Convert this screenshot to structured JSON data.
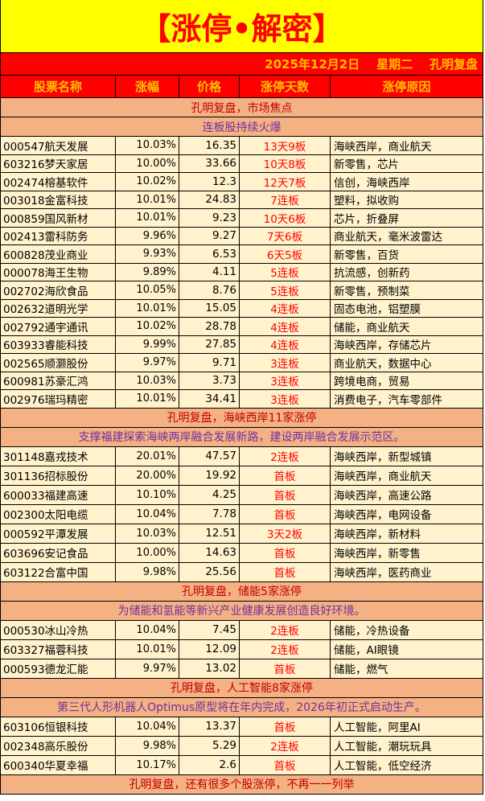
{
  "title": "【涨停•解密】",
  "date_line": "2025年12月2日    星期二    孔明复盘",
  "headers": [
    "股票名称",
    "涨幅",
    "价格",
    "涨停天数",
    "涨停原因"
  ],
  "colors": {
    "title_bg": "#ffff00",
    "title_text": "#ff0000",
    "header_bg": "#ff0000",
    "header_text": "#ffc000",
    "section_bg": "#f4b183",
    "row_bg": "#fff2cc",
    "days_text": "#ff0000"
  },
  "sections": [
    {
      "heading": "孔明复盘，市场焦点",
      "subheading": "连板股持续火爆",
      "rows": [
        [
          "000547航天发展",
          "10.03%",
          "16.35",
          "13天9板",
          "海峡西岸，商业航天"
        ],
        [
          "603216梦天家居",
          "10.00%",
          "33.66",
          "10天8板",
          "新零售，芯片"
        ],
        [
          "002474榕基软件",
          "10.02%",
          "12.3",
          "12天7板",
          "信创，海峡西岸"
        ],
        [
          "003018金富科技",
          "10.01%",
          "24.83",
          "7连板",
          "塑料，拟收购"
        ],
        [
          "000859国风新材",
          "10.01%",
          "9.23",
          "10天6板",
          "芯片，折叠屏"
        ],
        [
          "002413雷科防务",
          "9.96%",
          "9.27",
          "7天6板",
          "商业航天，毫米波雷达"
        ],
        [
          "600828茂业商业",
          "9.93%",
          "6.53",
          "6天5板",
          "新零售，百货"
        ],
        [
          "000078海王生物",
          "9.89%",
          "4.11",
          "5连板",
          "抗流感，创新药"
        ],
        [
          "002702海欣食品",
          "10.05%",
          "8.76",
          "5连板",
          "新零售，预制菜"
        ],
        [
          "002632道明光学",
          "10.01%",
          "15.05",
          "4连板",
          "固态电池，铝塑膜"
        ],
        [
          "002792通宇通讯",
          "10.02%",
          "28.78",
          "4连板",
          "储能，商业航天"
        ],
        [
          "603933睿能科技",
          "9.99%",
          "27.85",
          "4连板",
          "海峡西岸，存储芯片"
        ],
        [
          "002565顺灏股份",
          "9.97%",
          "9.71",
          "3连板",
          "商业航天，数据中心"
        ],
        [
          "600981苏豪汇鸿",
          "10.03%",
          "3.73",
          "3连板",
          "跨境电商，贸易"
        ],
        [
          "002976瑞玛精密",
          "10.01%",
          "34.41",
          "3连板",
          "消费电子，汽车零部件"
        ]
      ]
    },
    {
      "heading": "孔明复盘，海峡西岸11家涨停",
      "subheading": "支撑福建探索海峡两岸融合发展新路，建设两岸融合发展示范区。",
      "rows": [
        [
          "301148嘉戎技术",
          "20.01%",
          "47.57",
          "2连板",
          "海峡西岸，新型城镇"
        ],
        [
          "301136招标股份",
          "20.00%",
          "19.92",
          "首板",
          "海峡西岸，商业航天"
        ],
        [
          "600033福建高速",
          "10.10%",
          "4.25",
          "首板",
          "海峡西岸，高速公路"
        ],
        [
          "002300太阳电缆",
          "10.04%",
          "7.78",
          "首板",
          "海峡西岸，电网设备"
        ],
        [
          "000592平潭发展",
          "10.03%",
          "12.51",
          "3天2板",
          "海峡西岸，新材料"
        ],
        [
          "603696安记食品",
          "10.00%",
          "14.63",
          "首板",
          "海峡西岸，新零售"
        ],
        [
          "603122合富中国",
          "9.98%",
          "25.56",
          "首板",
          "海峡西岸，医药商业"
        ]
      ]
    },
    {
      "heading": "孔明复盘，储能5家涨停",
      "subheading": "为储能和氢能等新兴产业健康发展创造良好环境。",
      "rows": [
        [
          "000530冰山冷热",
          "10.04%",
          "7.45",
          "2连板",
          "储能，冷热设备"
        ],
        [
          "603327福蓉科技",
          "10.01%",
          "12.09",
          "2连板",
          "储能，AI眼镜"
        ],
        [
          "000593德龙汇能",
          "9.97%",
          "13.02",
          "首板",
          "储能，燃气"
        ]
      ]
    },
    {
      "heading": "孔明复盘，人工智能8家涨停",
      "subheading": "第三代人形机器人Optimus原型将在年内完成，2026年初正式启动生产。",
      "rows": [
        [
          "603106恒银科技",
          "10.04%",
          "13.37",
          "首板",
          "人工智能，阿里AI"
        ],
        [
          "002348高乐股份",
          "9.98%",
          "5.29",
          "2连板",
          "人工智能，潮玩玩具"
        ],
        [
          "600340华夏幸福",
          "10.17%",
          "2.6",
          "首板",
          "人工智能，低空经济"
        ]
      ]
    }
  ],
  "footer": "孔明复盘，还有很多个股涨停，不再一一列举"
}
